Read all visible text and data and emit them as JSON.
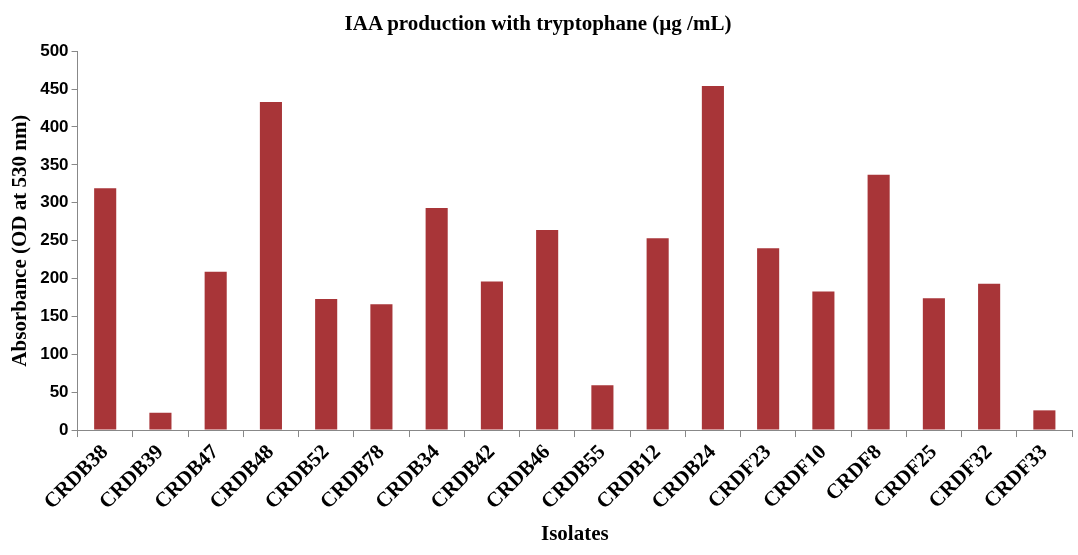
{
  "chart_data": {
    "type": "bar",
    "title": "IAA production with tryptophane (µg /mL)",
    "xlabel": "Isolates",
    "ylabel": "Absorbance (OD at 530 nm)",
    "categories": [
      "CRDB38",
      "CRDB39",
      "CRDB47",
      "CRDB48",
      "CRDB52",
      "CRDB78",
      "CRDB34",
      "CRDB42",
      "CRDB46",
      "CRDB55",
      "CRDB12",
      "CRDB24",
      "CRDF23",
      "CRDF10",
      "CRDF8",
      "CRDF25",
      "CRDF32",
      "CRDF33"
    ],
    "values": [
      319,
      23,
      209,
      433,
      173,
      166,
      293,
      196,
      264,
      59,
      253,
      454,
      240,
      183,
      337,
      174,
      193,
      26
    ],
    "color": "#a83538",
    "ylim": [
      0,
      500
    ],
    "yticks": [
      0,
      50,
      100,
      150,
      200,
      250,
      300,
      350,
      400,
      450,
      500
    ],
    "grid": false,
    "legend": false
  }
}
